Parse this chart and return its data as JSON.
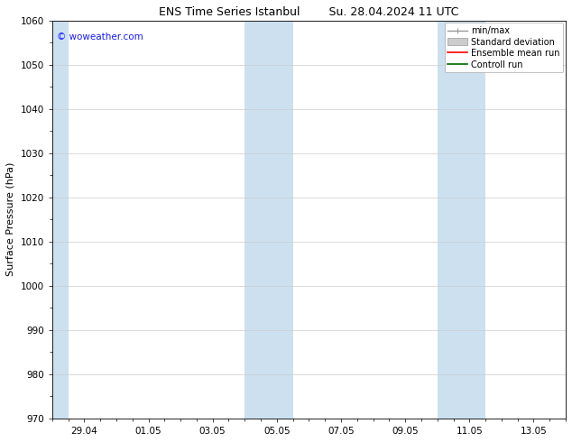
{
  "title_left": "ENS Time Series Istanbul",
  "title_right": "Su. 28.04.2024 11 UTC",
  "ylabel": "Surface Pressure (hPa)",
  "ylim": [
    970,
    1060
  ],
  "yticks": [
    970,
    980,
    990,
    1000,
    1010,
    1020,
    1030,
    1040,
    1050,
    1060
  ],
  "xtick_labels": [
    "29.04",
    "01.05",
    "03.05",
    "05.05",
    "07.05",
    "09.05",
    "11.05",
    "13.05"
  ],
  "watermark": "© woweather.com",
  "watermark_color": "#1a1aff",
  "shaded_bands": [
    {
      "x_start": 0.0,
      "x_end": 0.5,
      "color": "#cce0f0"
    },
    {
      "x_start": 6.0,
      "x_end": 7.5,
      "color": "#cce0f0"
    },
    {
      "x_start": 12.0,
      "x_end": 13.5,
      "color": "#cce0f0"
    }
  ],
  "legend_items": [
    {
      "label": "min/max",
      "color": "#999999",
      "type": "minmax"
    },
    {
      "label": "Standard deviation",
      "color": "#cccccc",
      "type": "stddev"
    },
    {
      "label": "Ensemble mean run",
      "color": "#ff0000",
      "type": "line"
    },
    {
      "label": "Controll run",
      "color": "#006600",
      "type": "line"
    }
  ],
  "bg_color": "#ffffff",
  "plot_bg_color": "#ffffff",
  "title_fontsize": 9,
  "axis_fontsize": 8,
  "tick_fontsize": 7.5,
  "legend_fontsize": 7,
  "xlim": [
    0,
    16
  ],
  "xtick_positions": [
    1,
    3,
    5,
    7,
    9,
    11,
    13,
    15
  ]
}
